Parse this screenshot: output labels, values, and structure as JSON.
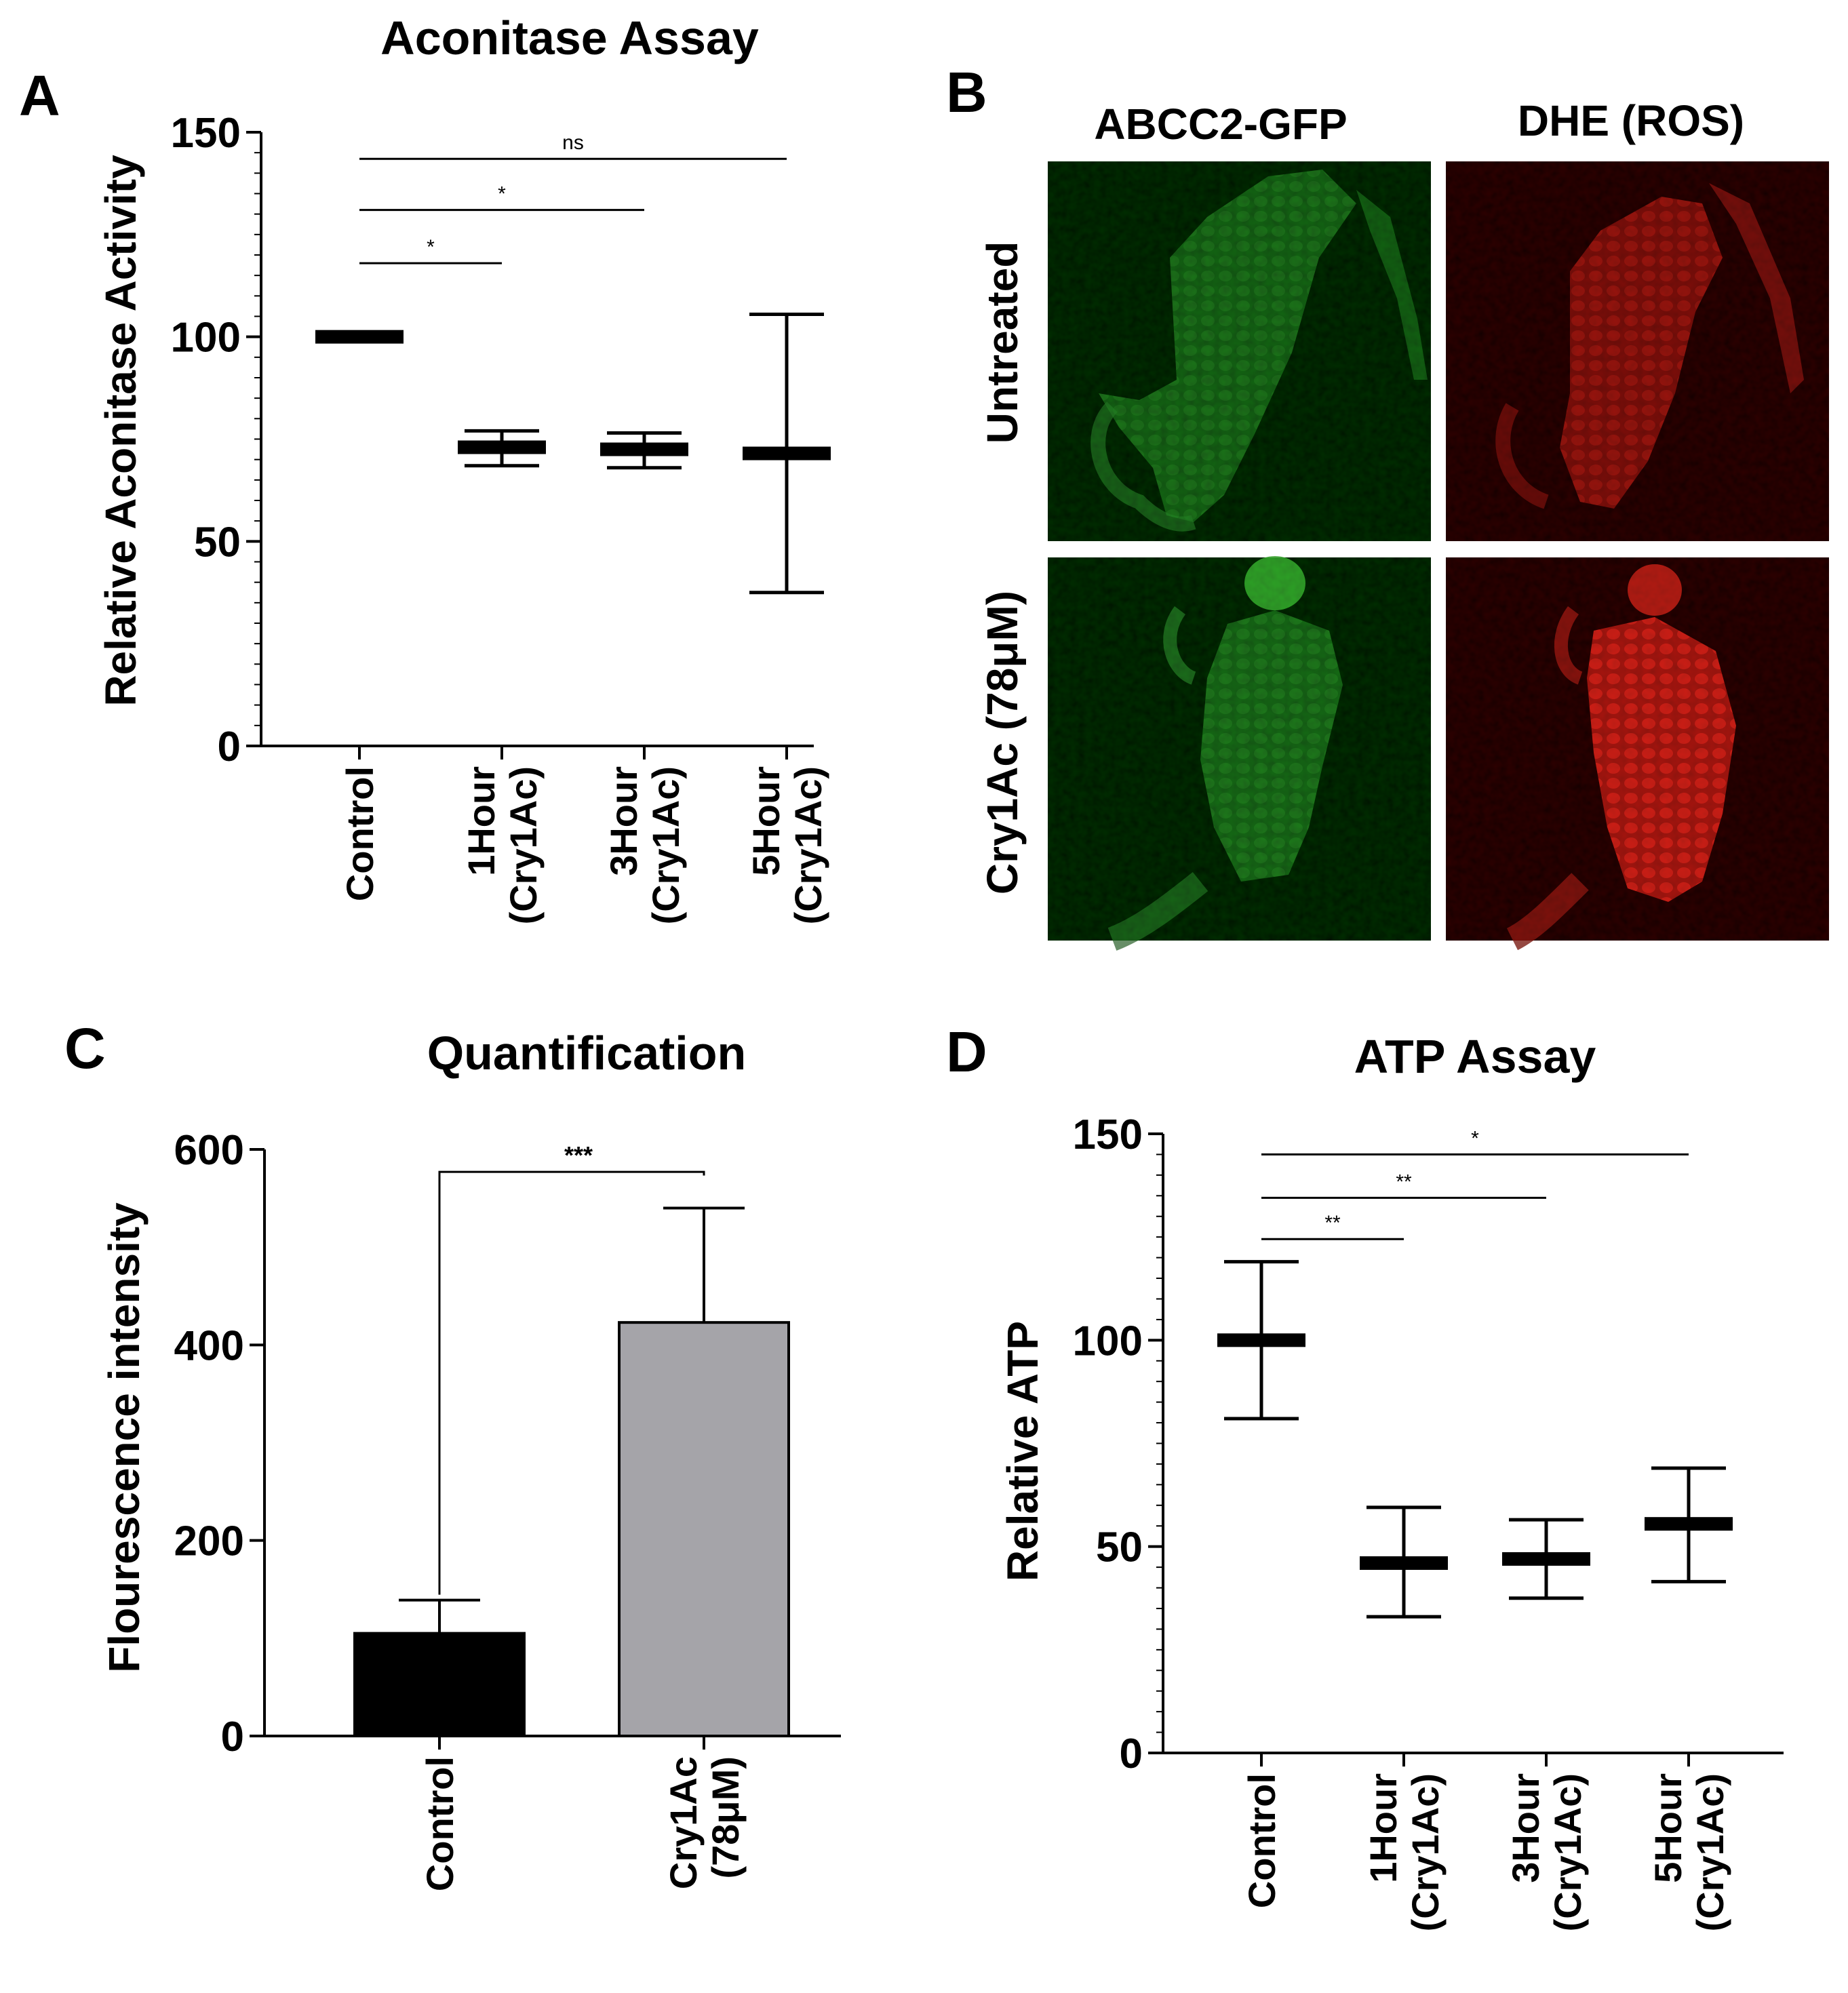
{
  "panels": {
    "A": "A",
    "B": "B",
    "C": "C",
    "D": "D"
  },
  "micrographs": {
    "columns": [
      "ABCC2-GFP",
      "DHE (ROS)"
    ],
    "rows": [
      "Untreated",
      "Cry1Ac (78μM)"
    ],
    "colors": {
      "gfp": "#3fbf3a",
      "dhe": "#e0271c",
      "background": "#000000"
    }
  },
  "chart_data": [
    {
      "panel": "A",
      "type": "scatter",
      "title": "Aconitase Assay",
      "xlabel": "",
      "ylabel": "Relative Aconitase Activity",
      "ylim": [
        0,
        150
      ],
      "yticks": [
        0,
        50,
        100,
        150
      ],
      "categories": [
        [
          "Control"
        ],
        [
          "1Hour",
          "(Cry1Ac)"
        ],
        [
          "3Hour",
          "(Cry1Ac)"
        ],
        [
          "5Hour",
          "(Cry1Ac)"
        ]
      ],
      "mean": [
        100,
        73,
        72.5,
        71.5
      ],
      "err_low": [
        99,
        68.5,
        68,
        37.5
      ],
      "err_high": [
        101,
        77,
        76.5,
        105.5
      ],
      "significance": [
        {
          "from": 0,
          "to": 1,
          "y": 118,
          "label": "*"
        },
        {
          "from": 0,
          "to": 2,
          "y": 131,
          "label": "*"
        },
        {
          "from": 0,
          "to": 3,
          "y": 143.5,
          "label": "ns"
        }
      ],
      "grid": false,
      "legend": "none"
    },
    {
      "panel": "C",
      "type": "bar",
      "title": "Quantification",
      "xlabel": "",
      "ylabel": "Flourescence intensity",
      "ylim": [
        0,
        600
      ],
      "yticks": [
        0,
        200,
        400,
        600
      ],
      "categories": [
        [
          "Control"
        ],
        [
          "Cry1Ac",
          "(78μM)"
        ]
      ],
      "values": [
        105,
        423
      ],
      "err_high": [
        139,
        540
      ],
      "colors": [
        "#000000",
        "#a5a4a9"
      ],
      "significance": [
        {
          "from": 0,
          "to": 1,
          "y": 577,
          "label": "***"
        }
      ],
      "grid": false,
      "legend": "none"
    },
    {
      "panel": "D",
      "type": "scatter",
      "title": "ATP Assay",
      "xlabel": "",
      "ylabel": "Relative ATP",
      "ylim": [
        0,
        150
      ],
      "yticks": [
        0,
        50,
        100,
        150
      ],
      "categories": [
        [
          "Control"
        ],
        [
          "1Hour",
          "(Cry1Ac)"
        ],
        [
          "3Hour",
          "(Cry1Ac)"
        ],
        [
          "5Hour",
          "(Cry1Ac)"
        ]
      ],
      "mean": [
        100,
        46,
        47,
        55.5
      ],
      "err_low": [
        81,
        33,
        37.5,
        41.5
      ],
      "err_high": [
        119,
        59.5,
        56.5,
        69
      ],
      "significance": [
        {
          "from": 0,
          "to": 1,
          "y": 124.5,
          "label": "**"
        },
        {
          "from": 0,
          "to": 2,
          "y": 134.5,
          "label": "**"
        },
        {
          "from": 0,
          "to": 3,
          "y": 145,
          "label": "*"
        }
      ],
      "grid": false,
      "legend": "none"
    }
  ]
}
